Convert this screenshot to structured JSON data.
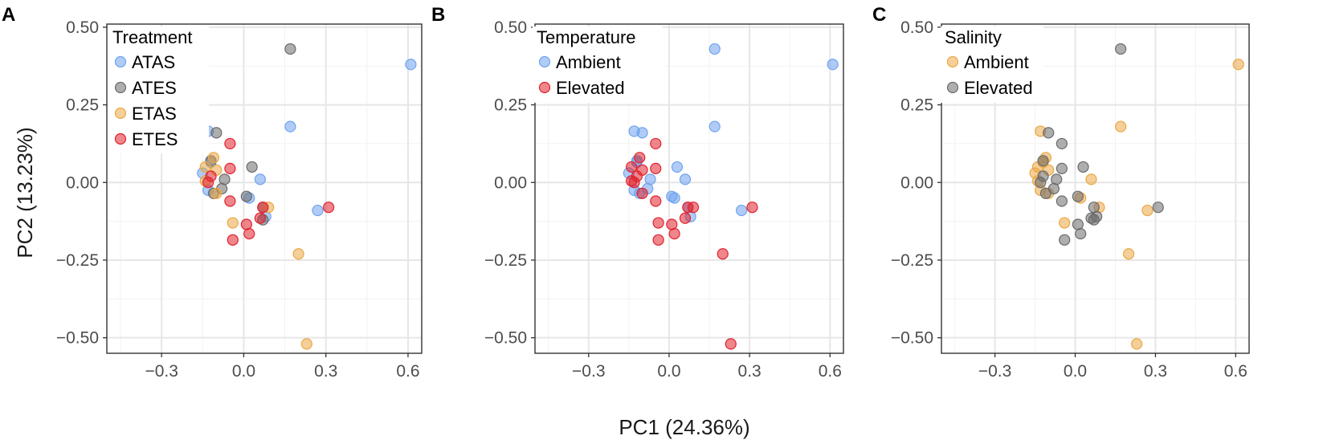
{
  "colors": {
    "blue": "#6fa3ef",
    "gray": "#6b6b6b",
    "orange": "#eba745",
    "red": "#e0222d",
    "grid_major": "#e6e6e6",
    "grid_minor": "#f2f2f2",
    "frame": "#333333"
  },
  "axis_labels": {
    "x": "PC1 (24.36%)",
    "y": "PC2 (13.23%)"
  },
  "chart_data": [
    {
      "panel": "A",
      "type": "scatter",
      "xlabel": "",
      "ylabel": "PC2 (13.23%)",
      "xlim": [
        -0.5,
        0.65
      ],
      "ylim": [
        -0.55,
        0.51
      ],
      "x_ticks": [
        -0.3,
        0.0,
        0.3,
        0.6
      ],
      "x_tick_labels": [
        "−0.3",
        "0.0",
        "0.3",
        "0.6"
      ],
      "y_ticks": [
        0.5,
        0.25,
        0.0,
        -0.25,
        -0.5
      ],
      "y_tick_labels": [
        "0.50",
        "0.25",
        "0.00",
        "−0.25",
        "−0.50"
      ],
      "legend_title": "Treatment",
      "legend_position": "top-left",
      "series": [
        {
          "name": "ATAS",
          "color_key": "blue",
          "points": [
            [
              0.61,
              0.38
            ],
            [
              0.17,
              0.18
            ],
            [
              -0.13,
              0.165
            ],
            [
              -0.12,
              0.065
            ],
            [
              -0.15,
              0.03
            ],
            [
              -0.13,
              -0.025
            ],
            [
              0.06,
              0.01
            ],
            [
              0.02,
              -0.05
            ],
            [
              0.27,
              -0.09
            ],
            [
              0.08,
              -0.11
            ]
          ]
        },
        {
          "name": "ATES",
          "color_key": "gray",
          "points": [
            [
              0.17,
              0.43
            ],
            [
              -0.1,
              0.16
            ],
            [
              -0.12,
              0.07
            ],
            [
              0.03,
              0.05
            ],
            [
              -0.07,
              0.01
            ],
            [
              -0.08,
              -0.02
            ],
            [
              0.01,
              -0.045
            ],
            [
              -0.11,
              -0.035
            ],
            [
              0.07,
              -0.08
            ],
            [
              0.07,
              -0.12
            ]
          ]
        },
        {
          "name": "ETAS",
          "color_key": "orange",
          "points": [
            [
              -0.14,
              0.05
            ],
            [
              -0.11,
              0.08
            ],
            [
              -0.1,
              0.04
            ],
            [
              -0.14,
              0.005
            ],
            [
              -0.1,
              -0.035
            ],
            [
              0.09,
              -0.08
            ],
            [
              -0.04,
              -0.13
            ],
            [
              0.2,
              -0.23
            ],
            [
              0.23,
              -0.52
            ]
          ]
        },
        {
          "name": "ETES",
          "color_key": "red",
          "points": [
            [
              -0.05,
              0.125
            ],
            [
              -0.05,
              0.045
            ],
            [
              -0.12,
              0.02
            ],
            [
              -0.13,
              0.0
            ],
            [
              -0.05,
              -0.06
            ],
            [
              0.07,
              -0.08
            ],
            [
              0.31,
              -0.08
            ],
            [
              0.06,
              -0.115
            ],
            [
              0.01,
              -0.135
            ],
            [
              0.02,
              -0.165
            ],
            [
              -0.04,
              -0.185
            ]
          ]
        }
      ]
    },
    {
      "panel": "B",
      "type": "scatter",
      "xlabel": "PC1 (24.36%)",
      "ylabel": "",
      "xlim": [
        -0.5,
        0.65
      ],
      "ylim": [
        -0.55,
        0.51
      ],
      "x_ticks": [
        -0.3,
        0.0,
        0.3,
        0.6
      ],
      "x_tick_labels": [
        "−0.3",
        "0.0",
        "0.3",
        "0.6"
      ],
      "y_ticks": [
        0.5,
        0.25,
        0.0,
        -0.25,
        -0.5
      ],
      "y_tick_labels": [
        "0.50",
        "0.25",
        "0.00",
        "−0.25",
        "−0.50"
      ],
      "legend_title": "Temperature",
      "legend_position": "top-left",
      "series": [
        {
          "name": "Ambient",
          "color_key": "blue",
          "points": [
            [
              0.61,
              0.38
            ],
            [
              0.17,
              0.43
            ],
            [
              0.17,
              0.18
            ],
            [
              -0.13,
              0.165
            ],
            [
              -0.1,
              0.16
            ],
            [
              -0.12,
              0.065
            ],
            [
              -0.15,
              0.03
            ],
            [
              -0.13,
              -0.025
            ],
            [
              0.06,
              0.01
            ],
            [
              0.02,
              -0.05
            ],
            [
              0.27,
              -0.09
            ],
            [
              0.08,
              -0.11
            ],
            [
              0.03,
              0.05
            ],
            [
              -0.07,
              0.01
            ],
            [
              -0.08,
              -0.02
            ],
            [
              0.01,
              -0.045
            ],
            [
              -0.11,
              -0.035
            ],
            [
              0.07,
              -0.08
            ],
            [
              -0.12,
              0.07
            ]
          ]
        },
        {
          "name": "Elevated",
          "color_key": "red",
          "points": [
            [
              -0.05,
              0.125
            ],
            [
              -0.05,
              0.045
            ],
            [
              -0.12,
              0.02
            ],
            [
              -0.13,
              0.0
            ],
            [
              -0.05,
              -0.06
            ],
            [
              0.07,
              -0.08
            ],
            [
              0.31,
              -0.08
            ],
            [
              0.06,
              -0.115
            ],
            [
              0.01,
              -0.135
            ],
            [
              0.02,
              -0.165
            ],
            [
              -0.04,
              -0.185
            ],
            [
              -0.14,
              0.05
            ],
            [
              -0.11,
              0.08
            ],
            [
              -0.1,
              0.04
            ],
            [
              -0.14,
              0.005
            ],
            [
              -0.1,
              -0.035
            ],
            [
              0.09,
              -0.08
            ],
            [
              -0.04,
              -0.13
            ],
            [
              0.2,
              -0.23
            ],
            [
              0.23,
              -0.52
            ]
          ]
        }
      ]
    },
    {
      "panel": "C",
      "type": "scatter",
      "xlabel": "",
      "ylabel": "",
      "xlim": [
        -0.5,
        0.65
      ],
      "ylim": [
        -0.55,
        0.51
      ],
      "x_ticks": [
        -0.3,
        0.0,
        0.3,
        0.6
      ],
      "x_tick_labels": [
        "−0.3",
        "0.0",
        "0.3",
        "0.6"
      ],
      "y_ticks": [
        0.5,
        0.25,
        0.0,
        -0.25,
        -0.5
      ],
      "y_tick_labels": [
        "0.50",
        "0.25",
        "0.00",
        "−0.25",
        "−0.50"
      ],
      "legend_title": "Salinity",
      "legend_position": "top-left",
      "series": [
        {
          "name": "Ambient",
          "color_key": "orange",
          "points": [
            [
              0.61,
              0.38
            ],
            [
              0.17,
              0.18
            ],
            [
              -0.13,
              0.165
            ],
            [
              -0.12,
              0.065
            ],
            [
              -0.15,
              0.03
            ],
            [
              -0.13,
              -0.025
            ],
            [
              0.06,
              0.01
            ],
            [
              0.02,
              -0.05
            ],
            [
              0.27,
              -0.09
            ],
            [
              -0.14,
              0.05
            ],
            [
              -0.11,
              0.08
            ],
            [
              -0.1,
              0.04
            ],
            [
              -0.14,
              0.005
            ],
            [
              -0.1,
              -0.035
            ],
            [
              0.09,
              -0.08
            ],
            [
              -0.04,
              -0.13
            ],
            [
              0.2,
              -0.23
            ],
            [
              0.23,
              -0.52
            ]
          ]
        },
        {
          "name": "Elevated",
          "color_key": "gray",
          "points": [
            [
              0.17,
              0.43
            ],
            [
              -0.1,
              0.16
            ],
            [
              -0.05,
              0.125
            ],
            [
              -0.12,
              0.07
            ],
            [
              0.03,
              0.05
            ],
            [
              -0.05,
              0.045
            ],
            [
              -0.12,
              0.02
            ],
            [
              -0.07,
              0.01
            ],
            [
              -0.13,
              0.0
            ],
            [
              -0.08,
              -0.02
            ],
            [
              0.01,
              -0.045
            ],
            [
              -0.11,
              -0.035
            ],
            [
              -0.05,
              -0.06
            ],
            [
              0.07,
              -0.08
            ],
            [
              0.31,
              -0.08
            ],
            [
              0.06,
              -0.115
            ],
            [
              0.08,
              -0.11
            ],
            [
              0.07,
              -0.12
            ],
            [
              0.01,
              -0.135
            ],
            [
              0.02,
              -0.165
            ],
            [
              -0.04,
              -0.185
            ]
          ]
        }
      ]
    }
  ]
}
